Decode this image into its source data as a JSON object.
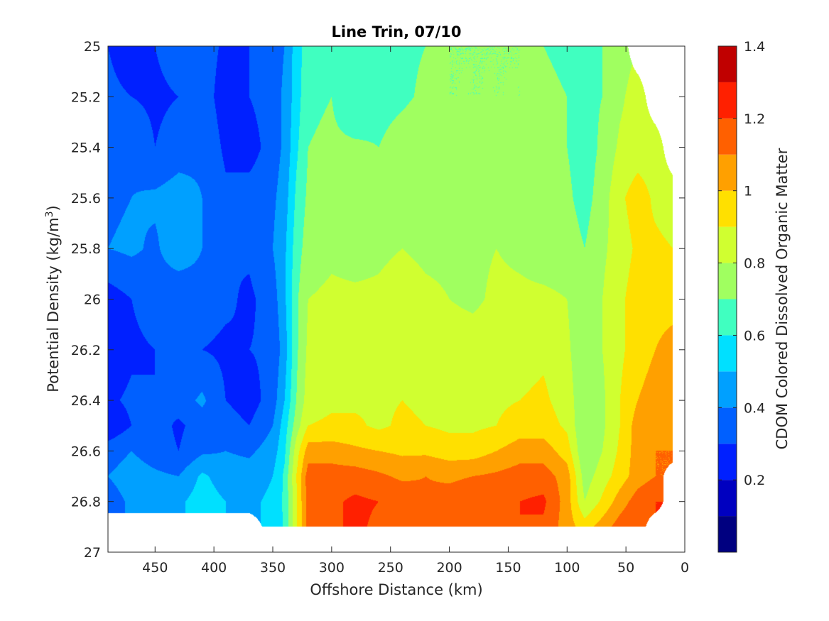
{
  "chart_data": {
    "type": "contour",
    "title": "Line Trin, 07/10",
    "xlabel": "Offshore Distance (km)",
    "ylabel_main": "Potential Density (kg/m",
    "ylabel_sup": "3",
    "ylabel_close": ")",
    "colorbar_label": "CDOM Colored Dissolved Organic Matter",
    "xlim": [
      490,
      0
    ],
    "x_reversed": true,
    "ylim": [
      25,
      27
    ],
    "y_reversed": true,
    "x_ticks": [
      450,
      400,
      350,
      300,
      250,
      200,
      150,
      100,
      50,
      0
    ],
    "x_tick_labels": [
      "450",
      "400",
      "350",
      "300",
      "250",
      "200",
      "150",
      "100",
      "50",
      "0"
    ],
    "y_ticks": [
      25,
      25.2,
      25.4,
      25.6,
      25.8,
      26,
      26.2,
      26.4,
      26.6,
      26.8,
      27
    ],
    "y_tick_labels": [
      "25",
      "25.2",
      "25.4",
      "25.6",
      "25.8",
      "26",
      "26.2",
      "26.4",
      "26.6",
      "26.8",
      "27"
    ],
    "colorbar": {
      "range": [
        0,
        1.4
      ],
      "levels": [
        0,
        0.1,
        0.2,
        0.3,
        0.4,
        0.5,
        0.6,
        0.7,
        0.8,
        0.9,
        1.0,
        1.1,
        1.2,
        1.3,
        1.4
      ],
      "colors": [
        "#000080",
        "#0000c0",
        "#0020ff",
        "#0060ff",
        "#00a0ff",
        "#00e0ff",
        "#40ffc0",
        "#a0ff60",
        "#d0ff30",
        "#ffe000",
        "#ffa000",
        "#ff6000",
        "#ff2000",
        "#c00000"
      ],
      "tick_values": [
        0.2,
        0.4,
        0.6,
        0.8,
        1,
        1.2,
        1.4
      ],
      "tick_labels": [
        "0.2",
        "0.4",
        "0.6",
        "0.8",
        "1",
        "1.2",
        "1.4"
      ]
    },
    "distance_nodes_km": [
      490,
      470,
      450,
      430,
      410,
      390,
      370,
      350,
      340,
      330,
      320,
      300,
      280,
      260,
      240,
      220,
      200,
      180,
      160,
      140,
      120,
      100,
      85,
      70,
      55,
      40,
      25,
      10
    ],
    "density_nodes": [
      25.0,
      25.2,
      25.4,
      25.6,
      25.8,
      26.0,
      26.2,
      26.4,
      26.5,
      26.6,
      26.7,
      26.8,
      26.9
    ],
    "cdom_grid": [
      [
        0.3,
        0.25,
        0.3,
        0.35,
        0.35,
        0.28,
        0.3,
        0.35,
        0.4,
        0.55,
        0.65,
        0.68,
        0.62,
        0.66,
        0.68,
        0.7,
        0.7,
        0.7,
        0.7,
        0.7,
        0.7,
        0.68,
        0.68,
        0.7,
        0.75,
        null,
        null,
        null
      ],
      [
        0.32,
        0.3,
        0.28,
        0.3,
        0.35,
        0.25,
        0.3,
        0.35,
        0.42,
        0.55,
        0.68,
        0.7,
        0.6,
        0.66,
        0.68,
        0.72,
        0.7,
        0.7,
        0.7,
        0.7,
        0.72,
        0.7,
        0.68,
        0.7,
        0.78,
        0.85,
        null,
        null
      ],
      [
        0.35,
        0.38,
        0.3,
        0.35,
        0.38,
        0.28,
        0.25,
        0.35,
        0.42,
        0.58,
        0.7,
        0.72,
        0.72,
        0.7,
        0.75,
        0.78,
        0.74,
        0.72,
        0.72,
        0.7,
        0.72,
        0.7,
        0.65,
        0.72,
        0.82,
        0.85,
        0.85,
        null
      ],
      [
        0.38,
        0.4,
        0.42,
        0.45,
        0.4,
        0.32,
        0.35,
        0.38,
        0.45,
        0.62,
        0.72,
        0.75,
        0.72,
        0.75,
        0.78,
        0.76,
        0.75,
        0.75,
        0.78,
        0.72,
        0.72,
        0.72,
        0.66,
        0.75,
        0.88,
        0.95,
        0.88,
        0.85
      ],
      [
        0.4,
        0.42,
        0.38,
        0.48,
        0.4,
        0.3,
        0.32,
        0.4,
        0.48,
        0.65,
        0.75,
        0.78,
        0.76,
        0.78,
        0.8,
        0.78,
        0.78,
        0.78,
        0.8,
        0.78,
        0.75,
        0.75,
        0.7,
        0.78,
        0.85,
        0.92,
        0.92,
        0.9
      ],
      [
        0.25,
        0.3,
        0.35,
        0.3,
        0.35,
        0.32,
        0.28,
        0.35,
        0.48,
        0.68,
        0.8,
        0.82,
        0.82,
        0.82,
        0.85,
        0.82,
        0.8,
        0.78,
        0.82,
        0.82,
        0.82,
        0.8,
        0.72,
        0.8,
        0.88,
        0.95,
        0.95,
        0.95
      ],
      [
        0.22,
        0.28,
        0.3,
        0.32,
        0.3,
        0.28,
        0.3,
        0.32,
        0.45,
        0.68,
        0.82,
        0.85,
        0.86,
        0.85,
        0.88,
        0.86,
        0.85,
        0.85,
        0.86,
        0.86,
        0.88,
        0.82,
        0.72,
        0.8,
        0.88,
        0.95,
        1.0,
        1.05
      ],
      [
        0.28,
        0.32,
        0.3,
        0.35,
        0.42,
        0.3,
        0.25,
        0.35,
        0.5,
        0.7,
        0.85,
        0.88,
        0.88,
        0.88,
        0.9,
        0.88,
        0.86,
        0.88,
        0.88,
        0.9,
        0.92,
        0.85,
        0.72,
        0.78,
        0.9,
        1.0,
        1.05,
        1.1
      ],
      [
        0.22,
        0.3,
        0.35,
        0.28,
        0.35,
        0.35,
        0.3,
        0.4,
        0.55,
        0.75,
        0.9,
        0.92,
        0.92,
        0.88,
        0.92,
        0.9,
        0.88,
        0.88,
        0.9,
        0.95,
        0.95,
        0.88,
        0.7,
        0.78,
        0.9,
        1.05,
        1.08,
        1.1
      ],
      [
        0.35,
        0.4,
        0.35,
        0.3,
        0.38,
        0.4,
        0.38,
        0.45,
        0.58,
        0.85,
        1.05,
        1.05,
        1.02,
        1.0,
        0.98,
        0.98,
        0.95,
        0.95,
        1.0,
        1.05,
        1.05,
        0.95,
        0.7,
        0.8,
        0.92,
        1.05,
        1.1,
        1.1
      ],
      [
        0.4,
        0.45,
        0.42,
        0.4,
        0.52,
        0.45,
        0.45,
        0.5,
        0.62,
        0.9,
        1.15,
        1.15,
        1.15,
        1.12,
        1.08,
        1.1,
        1.08,
        1.1,
        1.12,
        1.15,
        1.15,
        1.05,
        0.75,
        0.85,
        0.95,
        1.05,
        1.1,
        null
      ],
      [
        0.35,
        0.42,
        0.45,
        0.48,
        0.55,
        0.5,
        0.48,
        0.52,
        0.62,
        0.88,
        1.15,
        1.18,
        1.22,
        1.2,
        1.18,
        1.12,
        1.15,
        1.18,
        1.15,
        1.2,
        1.22,
        1.05,
        0.8,
        0.92,
        1.05,
        1.15,
        1.2,
        null
      ],
      [
        null,
        null,
        null,
        null,
        null,
        null,
        null,
        0.5,
        0.62,
        0.88,
        1.15,
        1.18,
        1.22,
        1.18,
        1.15,
        1.12,
        1.12,
        1.15,
        1.18,
        1.2,
        1.18,
        1.05,
        0.95,
        1.05,
        1.15,
        1.2,
        null,
        null
      ]
    ]
  }
}
